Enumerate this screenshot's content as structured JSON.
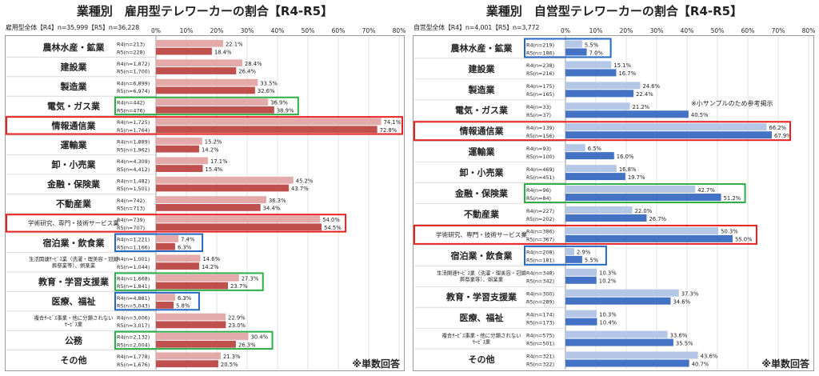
{
  "chart_data": [
    {
      "type": "bar",
      "orientation": "horizontal",
      "title": "業種別　雇用型テレワーカーの割合【R4-R5】",
      "total_label": "雇用型全体【R4】n=35,999【R5】n=36,228",
      "xlim": [
        0,
        80
      ],
      "x_ticks": [
        "0%",
        "10%",
        "20%",
        "30%",
        "40%",
        "50%",
        "60%",
        "70%",
        "80%"
      ],
      "note": "※単数回答",
      "colors": {
        "R4": "#e4a9a9",
        "R5": "#c0504d"
      },
      "highlights": {
        "red": "#e8201f",
        "green": "#2dae47",
        "blue": "#2468c4"
      },
      "categories": [
        {
          "name": "農林水産・鉱業",
          "r4_n": "R4(n=213)",
          "r5_n": "R5(n=228)",
          "r4": 22.1,
          "r5": 18.4,
          "r4_label": "22.1%",
          "r5_label": "18.4%"
        },
        {
          "name": "建設業",
          "r4_n": "R4(n=1,872)",
          "r5_n": "R5(n=1,700)",
          "r4": 28.4,
          "r5": 26.4,
          "r4_label": "28.4%",
          "r5_label": "26.4%"
        },
        {
          "name": "製造業",
          "r4_n": "R4(n=6,899)",
          "r5_n": "R5(n=6,974)",
          "r4": 33.5,
          "r5": 32.6,
          "r4_label": "33.5%",
          "r5_label": "32.6%"
        },
        {
          "name": "電気・ガス業",
          "r4_n": "R4(n=442)",
          "r5_n": "R5(n=476)",
          "r4": 36.9,
          "r5": 38.9,
          "r4_label": "36.9%",
          "r5_label": "38.9%",
          "highlight": "green"
        },
        {
          "name": "情報通信業",
          "r4_n": "R4(n=1,725)",
          "r5_n": "R5(n=1,764)",
          "r4": 74.1,
          "r5": 72.8,
          "r4_label": "74.1%",
          "r5_label": "72.8%",
          "highlight": "red"
        },
        {
          "name": "運輸業",
          "r4_n": "R4(n=1,889)",
          "r5_n": "R5(n=1,962)",
          "r4": 15.2,
          "r5": 14.2,
          "r4_label": "15.2%",
          "r5_label": "14.2%"
        },
        {
          "name": "卸・小売業",
          "r4_n": "R4(n=4,309)",
          "r5_n": "R5(n=4,412)",
          "r4": 17.1,
          "r5": 15.4,
          "r4_label": "17.1%",
          "r5_label": "15.4%"
        },
        {
          "name": "金融・保険業",
          "r4_n": "R4(n=1,482)",
          "r5_n": "R5(n=1,501)",
          "r4": 45.2,
          "r5": 43.7,
          "r4_label": "45.2%",
          "r5_label": "43.7%"
        },
        {
          "name": "不動産業",
          "r4_n": "R4(n=742)",
          "r5_n": "R5(n=713)",
          "r4": 36.3,
          "r5": 34.4,
          "r4_label": "36.3%",
          "r5_label": "34.4%"
        },
        {
          "name": "学術研究、専門・技術サービス業",
          "r4_n": "R4(n=739)",
          "r5_n": "R5(n=707)",
          "r4": 54.0,
          "r5": 54.5,
          "r4_label": "54.0%",
          "r5_label": "54.5%",
          "highlight": "red",
          "small": true
        },
        {
          "name": "宿泊業・飲食業",
          "r4_n": "R4(n=1,221)",
          "r5_n": "R5(n=1,166)",
          "r4": 7.4,
          "r5": 6.3,
          "r4_label": "7.4%",
          "r5_label": "6.3%",
          "highlight": "blue"
        },
        {
          "name": "生活関連ｻｰﾋﾞｽ業（洗濯・理美容・冠婚|葬祭業等）、娯楽業",
          "r4_n": "R4(n=1,001)",
          "r5_n": "R5(n=1,044)",
          "r4": 14.6,
          "r5": 14.2,
          "r4_label": "14.6%",
          "r5_label": "14.2%",
          "tiny": true
        },
        {
          "name": "教育・学習支援業",
          "r4_n": "R4(n=1,668)",
          "r5_n": "R5(n=1,841)",
          "r4": 27.3,
          "r5": 23.7,
          "r4_label": "27.3%",
          "r5_label": "23.7%",
          "highlight": "green"
        },
        {
          "name": "医療、福祉",
          "r4_n": "R4(n=4,881)",
          "r5_n": "R5(n=5,043)",
          "r4": 6.3,
          "r5": 5.8,
          "r4_label": "6.3%",
          "r5_label": "5.8%",
          "highlight": "blue"
        },
        {
          "name": "複合ｻｰﾋﾞｽ事業・他に分類されない|ｻｰﾋﾞｽ業",
          "r4_n": "R4(n=3,006)",
          "r5_n": "R5(n=3,017)",
          "r4": 22.9,
          "r5": 23.0,
          "r4_label": "22.9%",
          "r5_label": "23.0%",
          "tiny": true
        },
        {
          "name": "公務",
          "r4_n": "R4(n=2,132)",
          "r5_n": "R5(n=2,004)",
          "r4": 30.4,
          "r5": 26.3,
          "r4_label": "30.4%",
          "r5_label": "26.3%",
          "highlight": "green"
        },
        {
          "name": "その他",
          "r4_n": "R4(n=1,778)",
          "r5_n": "R5(n=1,676)",
          "r4": 21.3,
          "r5": 20.5,
          "r4_label": "21.3%",
          "r5_label": "20.5%"
        }
      ]
    },
    {
      "type": "bar",
      "orientation": "horizontal",
      "title": "業種別　自営型テレワーカーの割合【R4-R5】",
      "total_label": "自営型全体【R4】n=4,001【R5】n=3,772",
      "xlim": [
        0,
        80
      ],
      "x_ticks": [
        "0%",
        "10%",
        "20%",
        "30%",
        "40%",
        "50%",
        "60%",
        "70%",
        "80%"
      ],
      "note": "※単数回答",
      "small_sample_note": "※小サンプルのため参考掲示",
      "colors": {
        "R4": "#b4c7e7",
        "R5": "#4472c4"
      },
      "highlights": {
        "red": "#e8201f",
        "green": "#2dae47",
        "blue": "#2468c4"
      },
      "categories": [
        {
          "name": "農林水産・鉱業",
          "r4_n": "R4(n=219)",
          "r5_n": "R5(n=186)",
          "r4": 5.5,
          "r5": 7.0,
          "r4_label": "5.5%",
          "r5_label": "7.0%",
          "highlight": "blue"
        },
        {
          "name": "建設業",
          "r4_n": "R4(n=238)",
          "r5_n": "R5(n=216)",
          "r4": 15.1,
          "r5": 16.7,
          "r4_label": "15.1%",
          "r5_label": "16.7%"
        },
        {
          "name": "製造業",
          "r4_n": "R4(n=175)",
          "r5_n": "R5(n=165)",
          "r4": 24.6,
          "r5": 22.4,
          "r4_label": "24.6%",
          "r5_label": "22.4%"
        },
        {
          "name": "電気・ガス業",
          "r4_n": "R4(n=33)",
          "r5_n": "R5(n=37)",
          "r4": 21.2,
          "r5": 40.5,
          "r4_label": "21.2%",
          "r5_label": "40.5%"
        },
        {
          "name": "情報通信業",
          "r4_n": "R4(n=139)",
          "r5_n": "R5(n=156)",
          "r4": 66.2,
          "r5": 67.9,
          "r4_label": "66.2%",
          "r5_label": "67.9%",
          "highlight": "red"
        },
        {
          "name": "運輸業",
          "r4_n": "R4(n=93)",
          "r5_n": "R5(n=100)",
          "r4": 6.5,
          "r5": 16.0,
          "r4_label": "6.5%",
          "r5_label": "16.0%"
        },
        {
          "name": "卸・小売業",
          "r4_n": "R4(n=469)",
          "r5_n": "R5(n=451)",
          "r4": 16.8,
          "r5": 19.7,
          "r4_label": "16.8%",
          "r5_label": "19.7%"
        },
        {
          "name": "金融・保険業",
          "r4_n": "R4(n=96)",
          "r5_n": "R5(n=84)",
          "r4": 42.7,
          "r5": 51.2,
          "r4_label": "42.7%",
          "r5_label": "51.2%",
          "highlight": "green"
        },
        {
          "name": "不動産業",
          "r4_n": "R4(n=227)",
          "r5_n": "R5(n=202)",
          "r4": 22.0,
          "r5": 26.7,
          "r4_label": "22.0%",
          "r5_label": "26.7%"
        },
        {
          "name": "学術研究、専門・技術サービス業",
          "r4_n": "R4(n=386)",
          "r5_n": "R5(n=367)",
          "r4": 50.3,
          "r5": 55.0,
          "r4_label": "50.3%",
          "r5_label": "55.0%",
          "highlight": "red",
          "small": true
        },
        {
          "name": "宿泊業・飲食業",
          "r4_n": "R4(n=208)",
          "r5_n": "R5(n=181)",
          "r4": 2.9,
          "r5": 5.5,
          "r4_label": "2.9%",
          "r5_label": "5.5%",
          "highlight": "blue"
        },
        {
          "name": "生活関連ｻｰﾋﾞｽ業（洗濯・理美容・冠婚|葬祭業等）、娯楽業",
          "r4_n": "R4(n=348)",
          "r5_n": "R5(n=342)",
          "r4": 10.3,
          "r5": 10.2,
          "r4_label": "10.3%",
          "r5_label": "10.2%",
          "tiny": true
        },
        {
          "name": "教育・学習支援業",
          "r4_n": "R4(n=300)",
          "r5_n": "R5(n=289)",
          "r4": 37.3,
          "r5": 34.6,
          "r4_label": "37.3%",
          "r5_label": "34.6%"
        },
        {
          "name": "医療、福祉",
          "r4_n": "R4(n=174)",
          "r5_n": "R5(n=173)",
          "r4": 10.3,
          "r5": 10.4,
          "r4_label": "10.3%",
          "r5_label": "10.4%"
        },
        {
          "name": "複合ｻｰﾋﾞｽ事業・他に分類されない|ｻｰﾋﾞｽ業",
          "r4_n": "R4(n=575)",
          "r5_n": "R5(n=501)",
          "r4": 33.6,
          "r5": 35.5,
          "r4_label": "33.6%",
          "r5_label": "35.5%",
          "tiny": true
        },
        {
          "name": "その他",
          "r4_n": "R4(n=321)",
          "r5_n": "R5(n=322)",
          "r4": 43.6,
          "r5": 40.7,
          "r4_label": "43.6%",
          "r5_label": "40.7%"
        }
      ]
    }
  ]
}
